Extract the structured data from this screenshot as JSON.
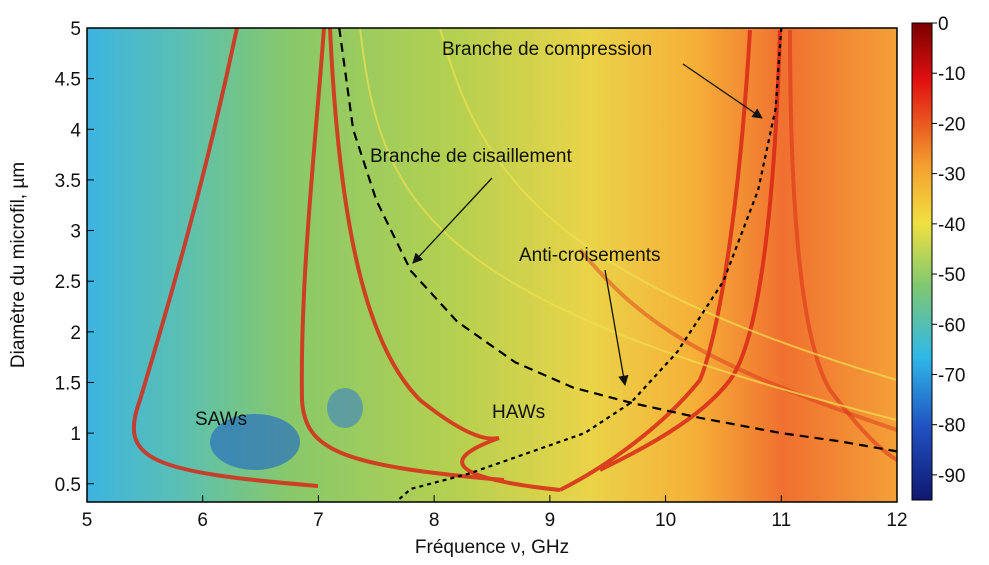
{
  "chart_data": {
    "type": "spectrogram",
    "xlabel": "Fréquence ν, GHz",
    "ylabel": "Diamètre du microfil, µm",
    "xlim": [
      5,
      12
    ],
    "ylim": [
      0.32,
      5
    ],
    "xticks": [
      5,
      6,
      7,
      8,
      9,
      10,
      11,
      12
    ],
    "yticks": [
      0.5,
      1,
      1.5,
      2,
      2.5,
      3,
      3.5,
      4,
      4.5,
      5
    ],
    "clim": [
      -95,
      0
    ],
    "cticks": [
      0,
      -10,
      -20,
      -30,
      -40,
      -50,
      -60,
      -70,
      -80,
      -90
    ],
    "series": [
      {
        "color": "#000000",
        "style": "dashed",
        "x": [
          7.18,
          7.3,
          7.5,
          7.8,
          8.2,
          8.7,
          9.2,
          9.7,
          10.3,
          11,
          11.5,
          12
        ],
        "values": [
          5,
          4,
          3.3,
          2.6,
          2.1,
          1.7,
          1.45,
          1.3,
          1.15,
          1.0,
          0.92,
          0.82
        ]
      },
      {
        "color": "#000000",
        "style": "dotted",
        "x": [
          7.7,
          7.8,
          8.3,
          8.8,
          9.3,
          9.7,
          10.1,
          10.5,
          10.8,
          10.95,
          11.0
        ],
        "values": [
          0.35,
          0.45,
          0.6,
          0.8,
          1.0,
          1.3,
          1.8,
          2.5,
          3.4,
          4.2,
          5
        ]
      }
    ],
    "annotations": [
      "Branche de compression",
      "Branche de cisaillement",
      "Anti-croisements",
      "SAWs",
      "HAWs"
    ]
  }
}
